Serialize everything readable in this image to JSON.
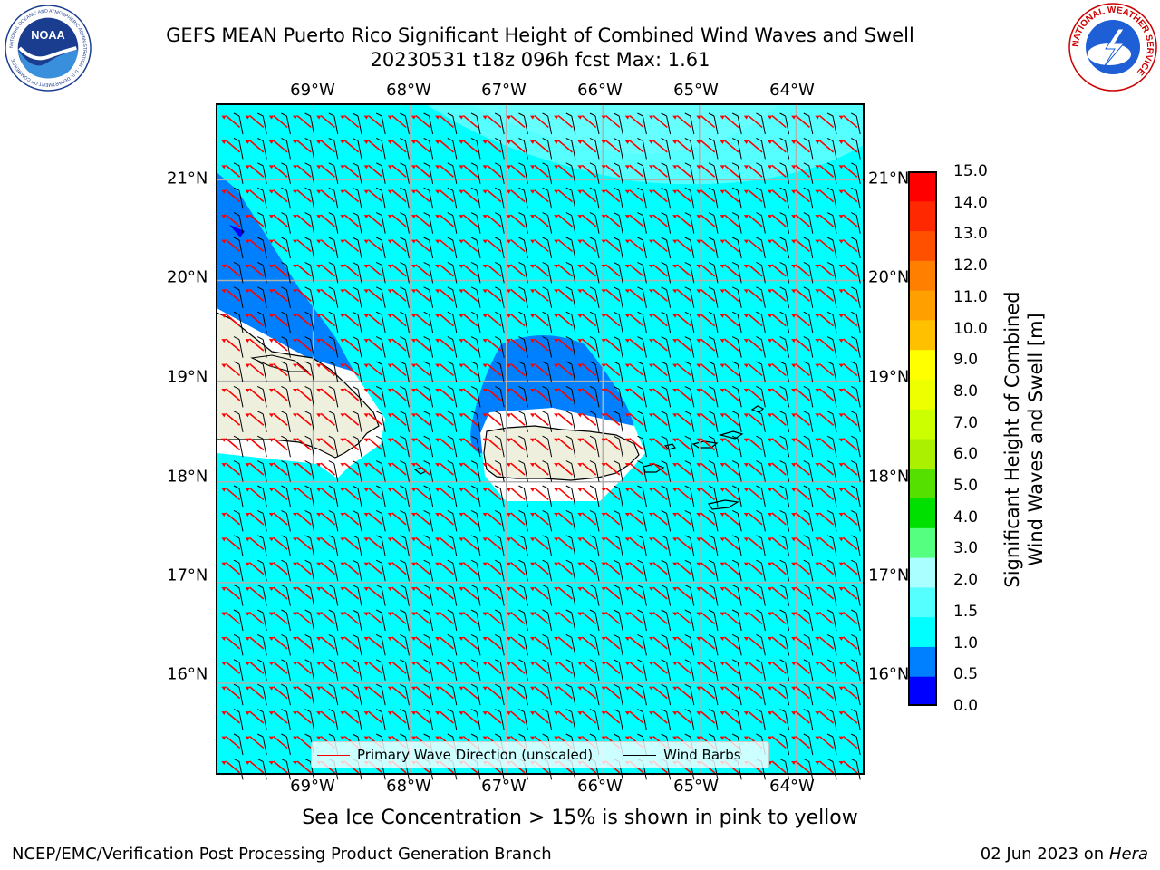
{
  "header": {
    "title_line1": "GEFS MEAN Puerto Rico Significant Height of Combined Wind Waves and Swell",
    "title_line2": "20230531 t18z 096h fcst   Max: 1.61"
  },
  "logos": {
    "left_text": "NOAA",
    "left_ring": "NATIONAL OCEANIC AND ATMOSPHERIC ADMINISTRATION · U.S. DEPARTMENT OF COMMERCE",
    "right_ring": "NATIONAL WEATHER SERVICE"
  },
  "map": {
    "lon_labels": [
      "69°W",
      "68°W",
      "67°W",
      "66°W",
      "65°W",
      "64°W"
    ],
    "lat_labels": [
      "21°N",
      "20°N",
      "19°N",
      "18°N",
      "17°N",
      "16°N"
    ],
    "lon_ticks": [
      -69,
      -68,
      -67,
      -66,
      -65,
      -64
    ],
    "lat_ticks": [
      21,
      20,
      19,
      18,
      17,
      16
    ],
    "extent": {
      "lon_min": -70.0,
      "lon_max": -63.3,
      "lat_min": 15.1,
      "lat_max": 21.75
    },
    "wind_direction_deg": 95,
    "wave_direction_deg": 130,
    "colors": {
      "ocean_base": "#00ffff",
      "land": "#efefde",
      "wave_arrow": "#ff0000",
      "barb": "#000000",
      "grid": "#b0b0b0"
    }
  },
  "colorbar": {
    "label": "Significant Height of Combined Wind Waves and Swell [m]",
    "label_line1": "Significant Height of Combined",
    "label_line2": "Wind Waves and Swell [m]",
    "ticks": [
      "15.0",
      "14.0",
      "13.0",
      "12.0",
      "11.0",
      "10.0",
      "9.0",
      "8.0",
      "7.0",
      "6.0",
      "5.0",
      "4.0",
      "3.0",
      "2.0",
      "1.5",
      "1.0",
      "0.5",
      "0.0"
    ],
    "colors_bottom_to_top": [
      "#0000ff",
      "#0080ff",
      "#00ffff",
      "#55ffff",
      "#aaffff",
      "#55ff80",
      "#00e000",
      "#55e000",
      "#aaf000",
      "#ccff00",
      "#eeff00",
      "#ffff00",
      "#ffc000",
      "#ffa000",
      "#ff8000",
      "#ff5000",
      "#ff2800",
      "#ff0000"
    ]
  },
  "legend": {
    "items": [
      {
        "label": "Primary Wave Direction (unscaled)",
        "color": "#ff0000"
      },
      {
        "label": "Wind Barbs",
        "color": "#000000"
      }
    ]
  },
  "notes": {
    "sea_ice": "Sea Ice Concentration > 15% is shown in pink to yellow"
  },
  "footer": {
    "left": "NCEP/EMC/Verification Post Processing Product Generation Branch",
    "right_date": "02 Jun 2023 on",
    "right_host": "Hera"
  }
}
